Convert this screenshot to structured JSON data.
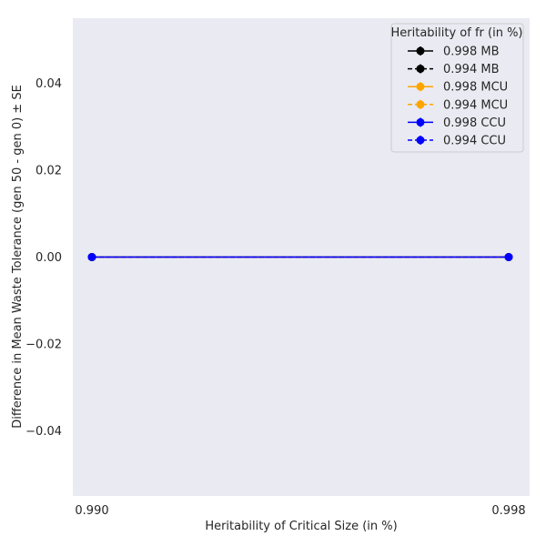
{
  "chart_data": {
    "type": "line",
    "xlabel": "Heritability of Critical Size (in %)",
    "ylabel": "Difference in Mean Waste Tolerance (gen 50 - gen 0) ± SE",
    "x": [
      0.99,
      0.998
    ],
    "x_tick_labels": [
      "0.990",
      "0.998"
    ],
    "ylim": [
      -0.055,
      0.055
    ],
    "y_ticks": [
      0.04,
      0.02,
      0.0,
      -0.02,
      -0.04
    ],
    "y_tick_labels": [
      "0.04",
      "0.02",
      "0.00",
      "−0.02",
      "−0.04"
    ],
    "grid": false,
    "background_color": "#eaeaf2",
    "legend": {
      "title": "Heritability of fr (in %)",
      "placement": "top-right"
    },
    "series": [
      {
        "name": "0.998 MB",
        "color": "#000000",
        "dashed": false,
        "values": [
          0.0,
          0.0
        ],
        "errors": [
          0.0,
          0.0
        ]
      },
      {
        "name": "0.994 MB",
        "color": "#000000",
        "dashed": true,
        "values": [
          0.0,
          0.0
        ],
        "errors": [
          0.0,
          0.0
        ]
      },
      {
        "name": "0.998 MCU",
        "color": "#ffa500",
        "dashed": false,
        "values": [
          0.0,
          0.0
        ],
        "errors": [
          0.0,
          0.0
        ]
      },
      {
        "name": "0.994 MCU",
        "color": "#ffa500",
        "dashed": true,
        "values": [
          0.0,
          0.0
        ],
        "errors": [
          0.0,
          0.0
        ]
      },
      {
        "name": "0.998 CCU",
        "color": "#0000ff",
        "dashed": false,
        "values": [
          0.0,
          0.0
        ],
        "errors": [
          0.0,
          0.0
        ]
      },
      {
        "name": "0.994 CCU",
        "color": "#0000ff",
        "dashed": true,
        "values": [
          0.0,
          0.0
        ],
        "errors": [
          0.0,
          0.0
        ]
      }
    ]
  }
}
